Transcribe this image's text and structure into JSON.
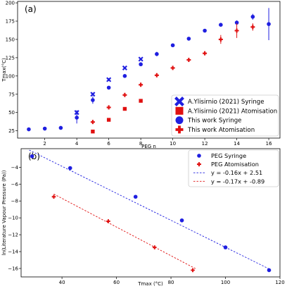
{
  "chart_data": [
    {
      "type": "scatter",
      "panel_label": "(a)",
      "xlabel": "PEG n",
      "ylabel": "Tmax(°C)",
      "xlim": [
        0.3,
        16.7
      ],
      "ylim": [
        15,
        202
      ],
      "x_ticks": [
        2,
        4,
        6,
        8,
        10,
        12,
        14,
        16
      ],
      "y_ticks": [
        25,
        50,
        75,
        100,
        125,
        150,
        175,
        200
      ],
      "grid": false,
      "legend_position": "bottom-right",
      "series": [
        {
          "name": "A.Ylisirnio (2021) Syringe",
          "marker": "x",
          "color": "#1f1fe0",
          "points": [
            {
              "x": 4,
              "y": 50,
              "err": 3
            },
            {
              "x": 5,
              "y": 75,
              "err": 2
            },
            {
              "x": 6,
              "y": 95,
              "err": 2
            },
            {
              "x": 7,
              "y": 111,
              "err": 1
            },
            {
              "x": 8,
              "y": 123,
              "err": 1
            }
          ]
        },
        {
          "name": "A.Ylisirnio (2021) Atomisation",
          "marker": "square",
          "color": "#e01010",
          "points": [
            {
              "x": 5,
              "y": 24
            },
            {
              "x": 6,
              "y": 40
            },
            {
              "x": 7,
              "y": 55
            },
            {
              "x": 8,
              "y": 66
            }
          ]
        },
        {
          "name": "This work Syringe",
          "marker": "circle",
          "color": "#1f1fe0",
          "points": [
            {
              "x": 1,
              "y": 27,
              "err": 0
            },
            {
              "x": 2,
              "y": 28,
              "err": 0
            },
            {
              "x": 3,
              "y": 29,
              "err": 0
            },
            {
              "x": 4,
              "y": 43,
              "err": 8
            },
            {
              "x": 5,
              "y": 67,
              "err": 5
            },
            {
              "x": 6,
              "y": 84,
              "err": 2
            },
            {
              "x": 7,
              "y": 100,
              "err": 1
            },
            {
              "x": 8,
              "y": 116,
              "err": 2
            },
            {
              "x": 9,
              "y": 130,
              "err": 3
            },
            {
              "x": 10,
              "y": 142,
              "err": 2
            },
            {
              "x": 11,
              "y": 151,
              "err": 2
            },
            {
              "x": 12,
              "y": 162,
              "err": 2
            },
            {
              "x": 13,
              "y": 170,
              "err": 2
            },
            {
              "x": 14,
              "y": 173,
              "err": 3
            },
            {
              "x": 15,
              "y": 181,
              "err": 4
            },
            {
              "x": 16,
              "y": 171,
              "err": 22
            }
          ]
        },
        {
          "name": "This work Atomisation",
          "marker": "plus",
          "color": "#e01010",
          "points": [
            {
              "x": 5,
              "y": 37,
              "err": 0
            },
            {
              "x": 6,
              "y": 57,
              "err": 0
            },
            {
              "x": 7,
              "y": 74,
              "err": 0
            },
            {
              "x": 8,
              "y": 88,
              "err": 0
            },
            {
              "x": 9,
              "y": 101,
              "err": 0
            },
            {
              "x": 10,
              "y": 111,
              "err": 0
            },
            {
              "x": 11,
              "y": 122,
              "err": 0
            },
            {
              "x": 12,
              "y": 131,
              "err": 0
            },
            {
              "x": 13,
              "y": 150,
              "err": 6
            },
            {
              "x": 14,
              "y": 162,
              "err": 10
            },
            {
              "x": 15,
              "y": 167,
              "err": 5
            }
          ]
        }
      ]
    },
    {
      "type": "scatter",
      "panel_label": "(b)",
      "xlabel": "Tmax (°C)",
      "ylabel": "ln(Literature Vapour Pressure (Pa))",
      "xlim": [
        25,
        120
      ],
      "ylim": [
        -17,
        -1.8
      ],
      "x_ticks": [
        40,
        60,
        80,
        100,
        120
      ],
      "y_ticks": [
        -16,
        -14,
        -12,
        -10,
        -8,
        -6,
        -4
      ],
      "grid": false,
      "legend_position": "top-right",
      "series": [
        {
          "name": "PEG Syringe",
          "marker": "circle",
          "color": "#1f1fe0",
          "points": [
            {
              "x": 29,
              "y": -2.7
            },
            {
              "x": 43,
              "y": -4.1
            },
            {
              "x": 67,
              "y": -7.5
            },
            {
              "x": 84,
              "y": -10.3
            },
            {
              "x": 100,
              "y": -13.5
            },
            {
              "x": 116,
              "y": -16.2
            }
          ]
        },
        {
          "name": "PEG Atomisation",
          "marker": "plus",
          "color": "#e01010",
          "points": [
            {
              "x": 37,
              "y": -7.5
            },
            {
              "x": 57,
              "y": -10.4
            },
            {
              "x": 74,
              "y": -13.5
            },
            {
              "x": 88,
              "y": -16.2
            }
          ]
        },
        {
          "name": "y = -0.16x + 2.51",
          "type": "fit-line",
          "color": "#1f1fe0",
          "slope": -0.16,
          "intercept": 2.51,
          "x_range": [
            28,
            116
          ]
        },
        {
          "name": "y = -0.17x + -0.89",
          "type": "fit-line",
          "color": "#e01010",
          "slope": -0.17,
          "intercept": -0.89,
          "x_range": [
            37,
            89
          ]
        }
      ]
    }
  ]
}
